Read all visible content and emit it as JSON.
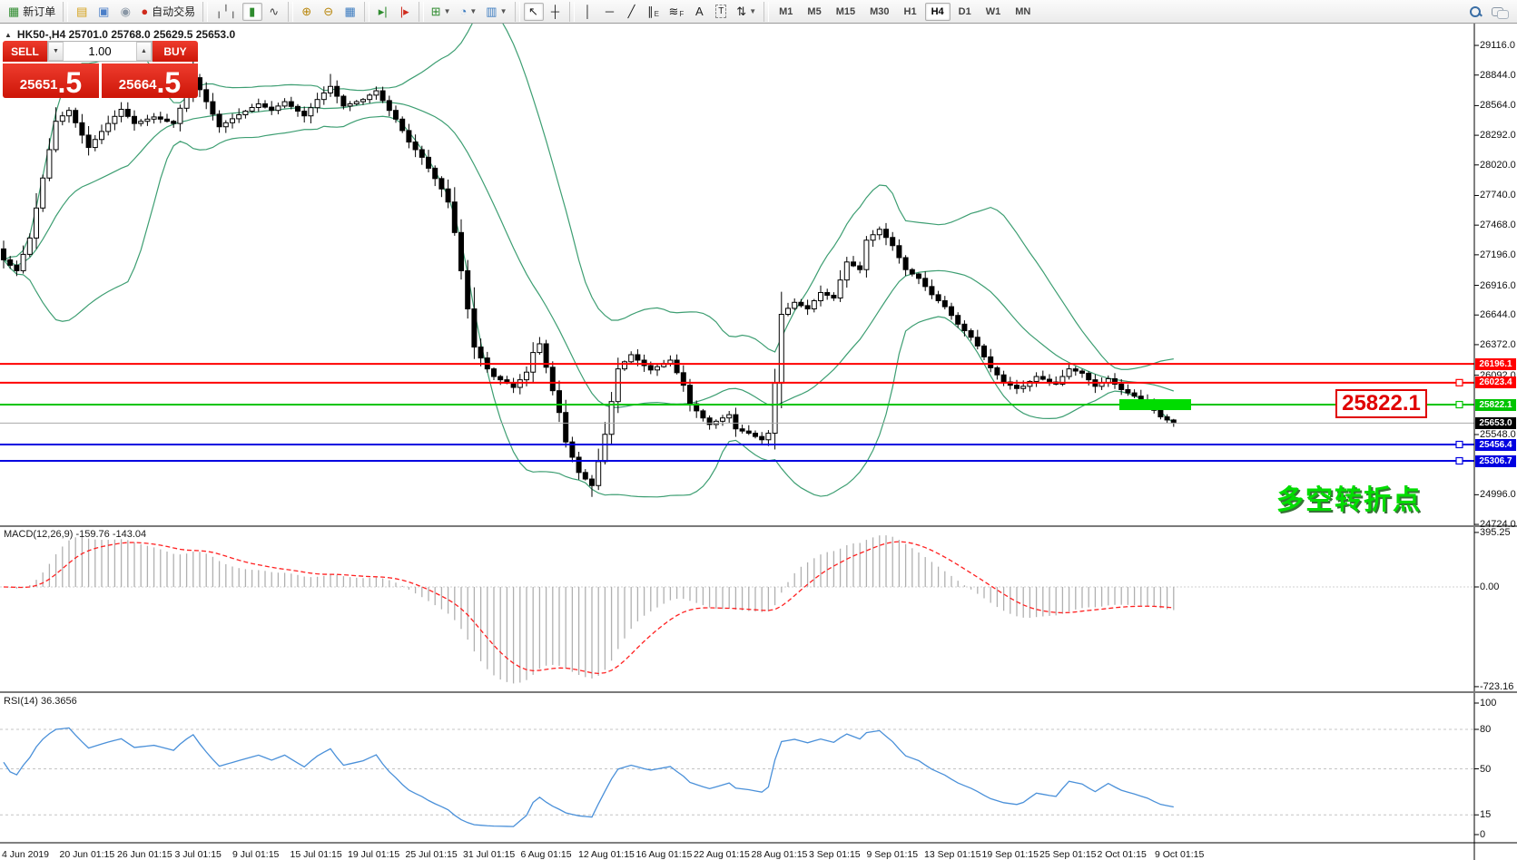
{
  "toolbar": {
    "items": [
      {
        "name": "new-order-button",
        "glyph": "▦",
        "glyph_color": "#2e8b2e",
        "label": "新订单"
      },
      {
        "name": "sep"
      },
      {
        "name": "market-watch-button",
        "glyph": "▤",
        "glyph_color": "#d4a017"
      },
      {
        "name": "terminal-button",
        "glyph": "▣",
        "glyph_color": "#4a7ec8"
      },
      {
        "name": "signals-button",
        "glyph": "◉",
        "glyph_color": "#8a97a5"
      },
      {
        "name": "autotrade-button",
        "glyph": "●",
        "glyph_color": "#cf2b1d",
        "label": "自动交易"
      },
      {
        "name": "sep"
      },
      {
        "name": "bar-chart-button",
        "glyph": "╷╵╷",
        "glyph_color": "#444"
      },
      {
        "name": "candle-chart-button",
        "glyph": "▮",
        "glyph_color": "#2e8b2e",
        "active": true
      },
      {
        "name": "line-chart-button",
        "glyph": "∿",
        "glyph_color": "#444"
      },
      {
        "name": "sep"
      },
      {
        "name": "zoom-in-button",
        "glyph": "⊕",
        "glyph_color": "#b8860b"
      },
      {
        "name": "zoom-out-button",
        "glyph": "⊖",
        "glyph_color": "#b8860b"
      },
      {
        "name": "tile-windows-button",
        "glyph": "▦",
        "glyph_color": "#3a7abf"
      },
      {
        "name": "sep"
      },
      {
        "name": "auto-scroll-button",
        "glyph": "▸|",
        "glyph_color": "#2e8b2e"
      },
      {
        "name": "chart-shift-button",
        "glyph": "|▸",
        "glyph_color": "#cf2b1d"
      },
      {
        "name": "sep"
      },
      {
        "name": "indicators-button",
        "glyph": "⊞",
        "glyph_color": "#2e8b2e",
        "dropdown": true
      },
      {
        "name": "periods-button",
        "glyph": "◔",
        "glyph_color": "#3a7abf",
        "dropdown": true
      },
      {
        "name": "templates-button",
        "glyph": "▥",
        "glyph_color": "#3a7abf",
        "dropdown": true
      },
      {
        "name": "sep"
      },
      {
        "name": "cursor-button",
        "glyph": "↖",
        "glyph_color": "#222",
        "active": true
      },
      {
        "name": "crosshair-button",
        "glyph": "┼",
        "glyph_color": "#222"
      },
      {
        "name": "sep"
      },
      {
        "name": "vertical-line-button",
        "glyph": "│",
        "glyph_color": "#222"
      },
      {
        "name": "horizontal-line-button",
        "glyph": "─",
        "glyph_color": "#222"
      },
      {
        "name": "trendline-button",
        "glyph": "╱",
        "glyph_color": "#222"
      },
      {
        "name": "channel-button",
        "glyph": "∥",
        "sub": "E",
        "glyph_color": "#222"
      },
      {
        "name": "fibonacci-button",
        "glyph": "≋",
        "sub": "F",
        "glyph_color": "#222"
      },
      {
        "name": "text-button",
        "glyph": "A",
        "glyph_color": "#222"
      },
      {
        "name": "text-label-button",
        "glyph": "T",
        "glyph_color": "#222",
        "boxed": true
      },
      {
        "name": "arrows-button",
        "glyph": "⇅",
        "glyph_color": "#222",
        "dropdown": true
      },
      {
        "name": "sep"
      }
    ],
    "timeframes": [
      "M1",
      "M5",
      "M15",
      "M30",
      "H1",
      "H4",
      "D1",
      "W1",
      "MN"
    ],
    "active_timeframe": "H4",
    "right_icons": [
      "search-icon",
      "chat-icon"
    ]
  },
  "trade_panel": {
    "sell_label": "SELL",
    "buy_label": "BUY",
    "volume": "1.00",
    "sell_price_main": "25651",
    "sell_price_frac": ".5",
    "buy_price_main": "25664",
    "buy_price_frac": ".5"
  },
  "chart": {
    "info_line": "HK50-,H4 25701.0 25768.0 25629.5 25653.0",
    "price_ticks": [
      29116.0,
      28844.0,
      28564.0,
      28292.0,
      28020.0,
      27740.0,
      27468.0,
      27196.0,
      26916.0,
      26644.0,
      26372.0,
      26092.0,
      25548.0,
      24996.0,
      24724.0
    ],
    "time_labels": [
      "4 Jun 2019",
      "20 Jun 01:15",
      "26 Jun 01:15",
      "3 Jul 01:15",
      "9 Jul 01:15",
      "15 Jul 01:15",
      "19 Jul 01:15",
      "25 Jul 01:15",
      "31 Jul 01:15",
      "6 Aug 01:15",
      "12 Aug 01:15",
      "16 Aug 01:15",
      "22 Aug 01:15",
      "28 Aug 01:15",
      "3 Sep 01:15",
      "9 Sep 01:15",
      "13 Sep 01:15",
      "19 Sep 01:15",
      "25 Sep 01:15",
      "2 Oct 01:15",
      "9 Oct 01:15"
    ],
    "hlines": [
      {
        "price": 26196.1,
        "label": "26196.1",
        "color": "#ff0000",
        "marker": false
      },
      {
        "price": 26023.4,
        "label": "26023.4",
        "color": "#ff0000",
        "marker": true
      },
      {
        "price": 25822.1,
        "label": "25822.1",
        "color": "#00c400",
        "marker": true
      },
      {
        "price": 25456.4,
        "label": "25456.4",
        "color": "#0000e0",
        "marker": true
      },
      {
        "price": 25306.7,
        "label": "25306.7",
        "color": "#0000e0",
        "marker": true
      }
    ],
    "current_price": {
      "price": 25653.0,
      "label": "25653.0",
      "tag_color": "#000000",
      "line_color": "#a8a8a8"
    },
    "annotations": {
      "price_label": "25822.1",
      "flip_text": "多空转折点",
      "highlight_color": "#00dc00"
    },
    "band_color": "#3d9e72",
    "candle_up_fill": "#ffffff",
    "candle_down_fill": "#000000"
  },
  "macd_panel": {
    "label": "MACD(12,26,9) -159.76 -143.04",
    "axis_labels": [
      "395.25",
      "0.00",
      "-723.16"
    ],
    "axis_values": [
      395.25,
      0,
      -723.16
    ],
    "histogram_color": "#b0b0b0",
    "signal_color": "#ff2020"
  },
  "rsi_panel": {
    "label": "RSI(14) 36.3656",
    "levels": [
      100,
      80,
      50,
      15,
      0
    ],
    "dashed_levels": [
      80,
      50,
      15
    ],
    "line_color": "#4a90d9"
  },
  "chart_data": {
    "type": "candlestick",
    "symbol": "HK50-",
    "timeframe": "H4",
    "last_bar_ohlc": {
      "open": 25701.0,
      "high": 25768.0,
      "low": 25629.5,
      "close": 25653.0
    },
    "bid": 25651.5,
    "ask": 25664.5,
    "y_axis_range": [
      24724.0,
      29116.0
    ],
    "x_range": [
      "4 Jun 2019",
      "9 Oct 2019"
    ],
    "candle_count": 180,
    "price_path": [
      [
        0,
        27150
      ],
      [
        2,
        27050
      ],
      [
        4,
        27350
      ],
      [
        6,
        27900
      ],
      [
        8,
        28420
      ],
      [
        10,
        28520
      ],
      [
        13,
        28180
      ],
      [
        16,
        28400
      ],
      [
        18,
        28530
      ],
      [
        20,
        28400
      ],
      [
        23,
        28460
      ],
      [
        26,
        28400
      ],
      [
        29,
        28820
      ],
      [
        31,
        28600
      ],
      [
        33,
        28370
      ],
      [
        36,
        28480
      ],
      [
        39,
        28580
      ],
      [
        41,
        28520
      ],
      [
        43,
        28600
      ],
      [
        46,
        28470
      ],
      [
        48,
        28620
      ],
      [
        50,
        28740
      ],
      [
        52,
        28560
      ],
      [
        55,
        28620
      ],
      [
        57,
        28700
      ],
      [
        59,
        28520
      ],
      [
        60,
        28440
      ],
      [
        62,
        28230
      ],
      [
        64,
        28090
      ],
      [
        65,
        27990
      ],
      [
        67,
        27800
      ],
      [
        68,
        27680
      ],
      [
        69,
        27400
      ],
      [
        70,
        27050
      ],
      [
        71,
        26700
      ],
      [
        72,
        26350
      ],
      [
        74,
        26150
      ],
      [
        75,
        26080
      ],
      [
        77,
        26020
      ],
      [
        78,
        25980
      ],
      [
        80,
        26120
      ],
      [
        81,
        26300
      ],
      [
        82,
        26380
      ],
      [
        84,
        25950
      ],
      [
        85,
        25750
      ],
      [
        86,
        25480
      ],
      [
        88,
        25200
      ],
      [
        90,
        25080
      ],
      [
        91,
        25300
      ],
      [
        92,
        25550
      ],
      [
        93,
        25850
      ],
      [
        94,
        26150
      ],
      [
        96,
        26280
      ],
      [
        98,
        26180
      ],
      [
        99,
        26140
      ],
      [
        101,
        26200
      ],
      [
        102,
        26230
      ],
      [
        104,
        26000
      ],
      [
        105,
        25830
      ],
      [
        107,
        25700
      ],
      [
        108,
        25640
      ],
      [
        110,
        25700
      ],
      [
        111,
        25730
      ],
      [
        112,
        25600
      ],
      [
        114,
        25560
      ],
      [
        116,
        25500
      ],
      [
        117,
        25560
      ],
      [
        118,
        26020
      ],
      [
        119,
        26650
      ],
      [
        121,
        26760
      ],
      [
        123,
        26700
      ],
      [
        125,
        26850
      ],
      [
        127,
        26800
      ],
      [
        129,
        27130
      ],
      [
        131,
        27060
      ],
      [
        132,
        27330
      ],
      [
        134,
        27430
      ],
      [
        136,
        27280
      ],
      [
        138,
        27060
      ],
      [
        140,
        26980
      ],
      [
        142,
        26830
      ],
      [
        144,
        26720
      ],
      [
        146,
        26560
      ],
      [
        148,
        26440
      ],
      [
        149,
        26360
      ],
      [
        151,
        26160
      ],
      [
        153,
        26030
      ],
      [
        155,
        25970
      ],
      [
        156,
        25990
      ],
      [
        158,
        26080
      ],
      [
        160,
        26030
      ],
      [
        161,
        26010
      ],
      [
        163,
        26150
      ],
      [
        165,
        26110
      ],
      [
        167,
        25990
      ],
      [
        169,
        26060
      ],
      [
        171,
        25960
      ],
      [
        173,
        25900
      ],
      [
        175,
        25830
      ],
      [
        177,
        25710
      ],
      [
        179,
        25653
      ]
    ],
    "indicators": [
      {
        "name": "Bollinger Bands",
        "period": 20,
        "deviation": 2
      },
      {
        "name": "MACD",
        "fast": 12,
        "slow": 26,
        "signal": 9,
        "last_values": [
          -159.76,
          -143.04
        ]
      },
      {
        "name": "RSI",
        "period": 14,
        "last_value": 36.3656
      }
    ]
  }
}
